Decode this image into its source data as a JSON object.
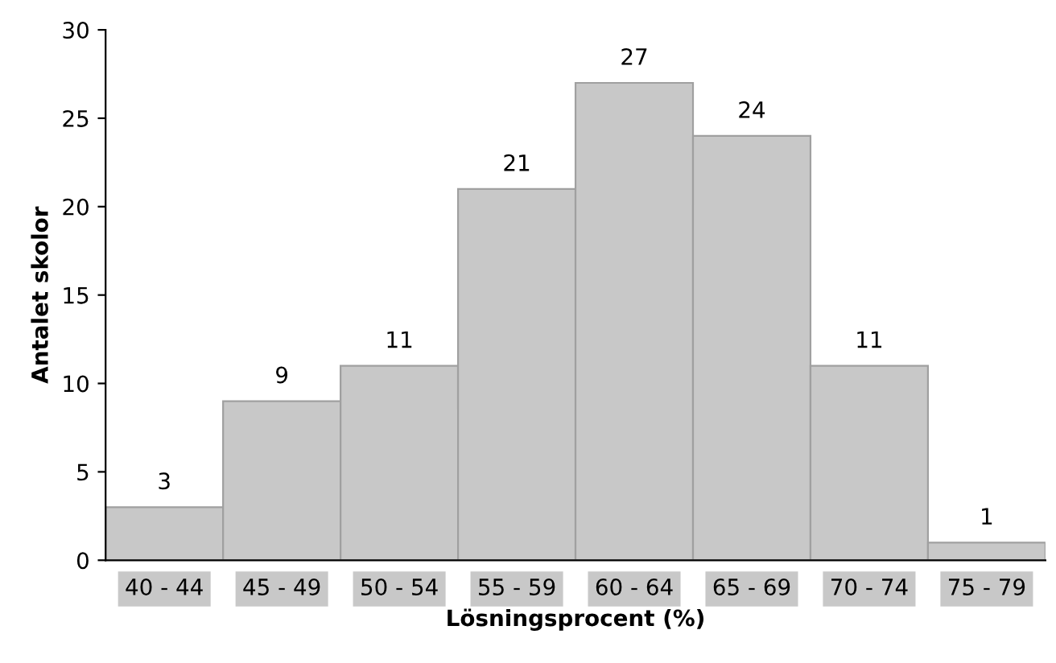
{
  "chart_data": {
    "type": "bar",
    "xlabel": "Lösningsprocent (%)",
    "ylabel": "Antalet skolor",
    "categories": [
      "40 - 44",
      "45 - 49",
      "50 - 54",
      "55 - 59",
      "60 - 64",
      "65 - 69",
      "70 - 74",
      "75 - 79"
    ],
    "values": [
      3,
      9,
      11,
      21,
      27,
      24,
      11,
      1
    ],
    "color": "#c8c8c8",
    "ylim": [
      0,
      30
    ],
    "yticks": [
      0,
      5,
      10,
      15,
      20,
      25,
      30
    ],
    "grid": false,
    "data_labels": true
  }
}
